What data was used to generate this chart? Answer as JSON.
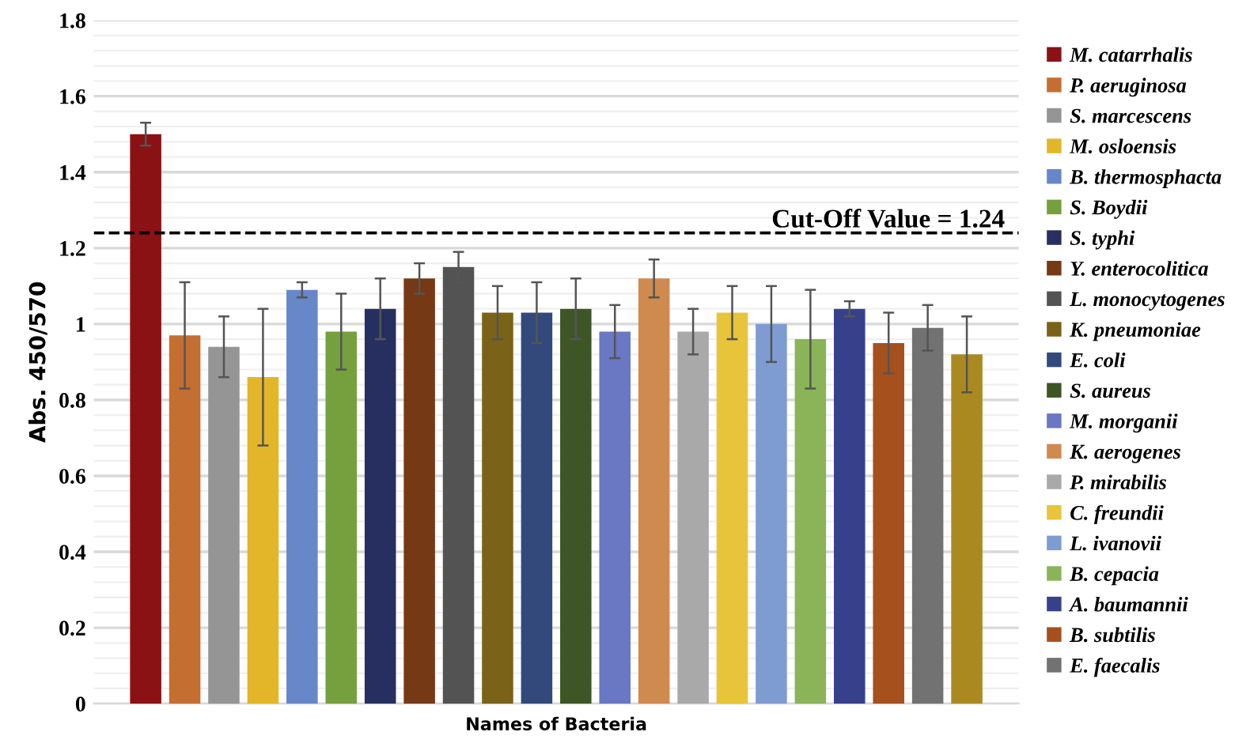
{
  "chart_data": {
    "type": "bar",
    "ylabel": "Abs. 450/570",
    "xlabel": "Names of Bacteria",
    "categories": [
      null
    ],
    "series": [
      {
        "name": "M. catarrhalis",
        "color": "#8b1214",
        "values": [
          1.5
        ],
        "errors": [
          0.03
        ]
      },
      {
        "name": "P. aeruginosa",
        "color": "#c46e31",
        "values": [
          0.97
        ],
        "errors": [
          0.14
        ]
      },
      {
        "name": "S. marcescens",
        "color": "#959595",
        "values": [
          0.94
        ],
        "errors": [
          0.08
        ]
      },
      {
        "name": "M. osloensis",
        "color": "#e2b628",
        "values": [
          0.86
        ],
        "errors": [
          0.18
        ]
      },
      {
        "name": "B. thermosphacta",
        "color": "#6787c8",
        "values": [
          1.09
        ],
        "errors": [
          0.02
        ]
      },
      {
        "name": "S. Boydii",
        "color": "#76a03e",
        "values": [
          0.98
        ],
        "errors": [
          0.1
        ]
      },
      {
        "name": "S. typhi",
        "color": "#272f60",
        "values": [
          1.04
        ],
        "errors": [
          0.08
        ]
      },
      {
        "name": "Y. enterocolitica",
        "color": "#753916",
        "values": [
          1.12
        ],
        "errors": [
          0.04
        ]
      },
      {
        "name": "L. monocytogenes",
        "color": "#535353",
        "values": [
          1.15
        ],
        "errors": [
          0.04
        ]
      },
      {
        "name": "K. pneumoniae",
        "color": "#7a6218",
        "values": [
          1.03
        ],
        "errors": [
          0.07
        ]
      },
      {
        "name": "E. coli",
        "color": "#33497c",
        "values": [
          1.03
        ],
        "errors": [
          0.08
        ]
      },
      {
        "name": "S. aureus",
        "color": "#3e5625",
        "values": [
          1.04
        ],
        "errors": [
          0.08
        ]
      },
      {
        "name": "M. morganii",
        "color": "#6a77c2",
        "values": [
          0.98
        ],
        "errors": [
          0.07
        ]
      },
      {
        "name": "K. aerogenes",
        "color": "#cf8a4f",
        "values": [
          1.12
        ],
        "errors": [
          0.05
        ]
      },
      {
        "name": "P. mirabilis",
        "color": "#a9a9a9",
        "values": [
          0.98
        ],
        "errors": [
          0.06
        ]
      },
      {
        "name": "C. freundii",
        "color": "#e8c43b",
        "values": [
          1.03
        ],
        "errors": [
          0.07
        ]
      },
      {
        "name": "L. ivanovii",
        "color": "#7f9cd2",
        "values": [
          1.0
        ],
        "errors": [
          0.1
        ]
      },
      {
        "name": "B. cepacia",
        "color": "#8ab457",
        "values": [
          0.96
        ],
        "errors": [
          0.13
        ]
      },
      {
        "name": "A. baumannii",
        "color": "#37418b",
        "values": [
          1.04
        ],
        "errors": [
          0.02
        ]
      },
      {
        "name": "B. subtilis",
        "color": "#a5501d",
        "values": [
          0.95
        ],
        "errors": [
          0.08
        ]
      },
      {
        "name": "E. faecalis",
        "color": "#727272",
        "values": [
          0.99
        ],
        "errors": [
          0.06
        ]
      },
      {
        "color": "#aa8a20",
        "values": [
          0.92
        ],
        "errors": [
          0.1
        ]
      }
    ],
    "ylim": [
      0,
      1.8
    ],
    "yticks": [
      0,
      0.2,
      0.4,
      0.6,
      0.8,
      1,
      1.2,
      1.4,
      1.6,
      1.8
    ],
    "ref_lines": [
      {
        "axis": "y",
        "value": 1.24,
        "label": "Cut-Off Value = 1.24",
        "line_style": "dashed",
        "color": "#000000"
      }
    ],
    "grid": "y",
    "legend": "right",
    "tick_labels": "y"
  }
}
